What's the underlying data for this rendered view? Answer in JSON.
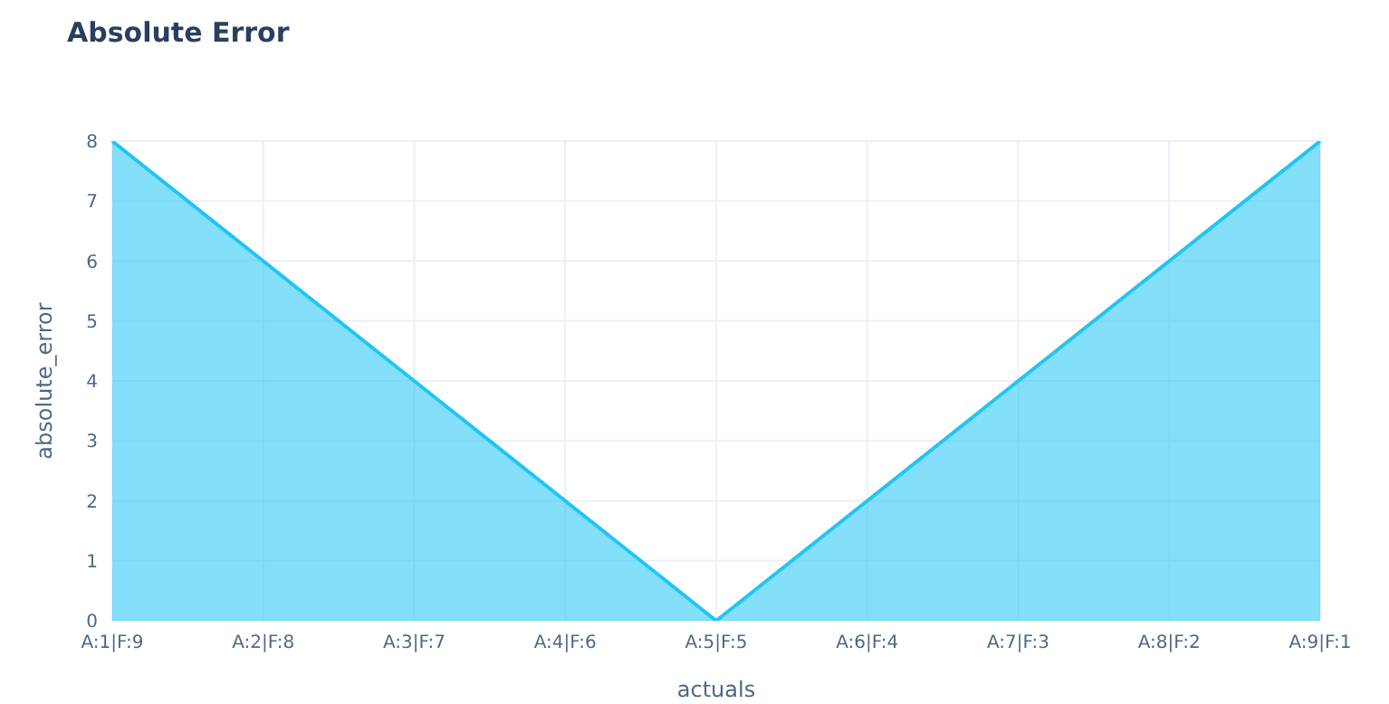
{
  "chart_data": {
    "type": "area",
    "title": "Absolute Error",
    "xlabel": "actuals",
    "ylabel": "absolute_error",
    "categories": [
      "A:1|F:9",
      "A:2|F:8",
      "A:3|F:7",
      "A:4|F:6",
      "A:5|F:5",
      "A:6|F:4",
      "A:7|F:3",
      "A:8|F:2",
      "A:9|F:1"
    ],
    "series": [
      {
        "color": "#1fc5f5",
        "values": [
          8,
          6,
          4,
          2,
          0,
          2,
          4,
          6,
          8
        ]
      }
    ],
    "ylim": [
      0,
      8
    ],
    "yticks": [
      0,
      1,
      2,
      3,
      4,
      5,
      6,
      7,
      8
    ],
    "grid": true,
    "legend": false,
    "line_style": "solid"
  }
}
